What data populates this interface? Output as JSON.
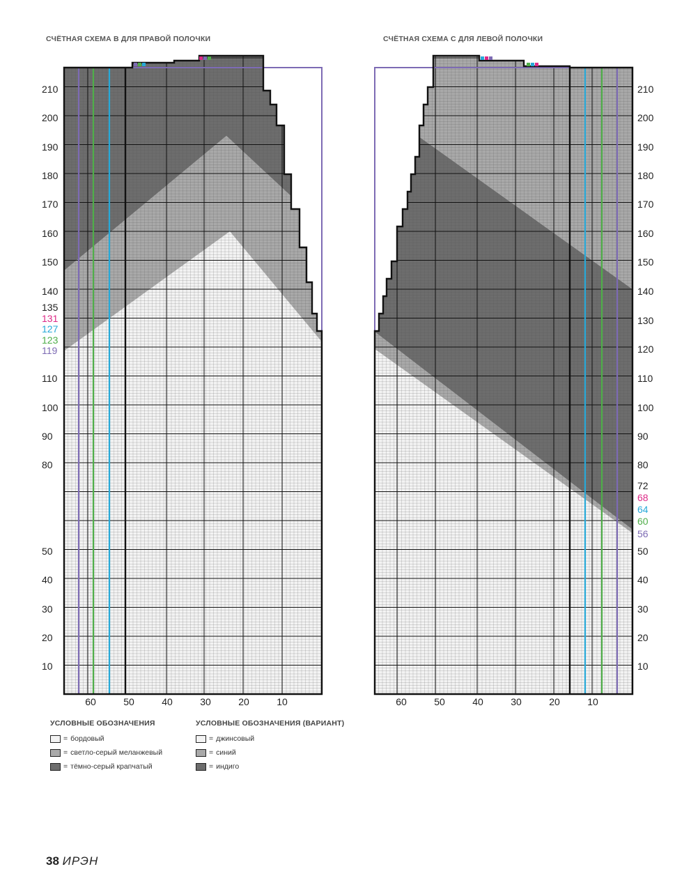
{
  "titles": {
    "right": "СЧЁТНАЯ СХЕМА В ДЛЯ ПРАВОЙ ПОЛОЧКИ",
    "left": "СЧЁТНАЯ СХЕМА С ДЛЯ ЛЕВОЙ ПОЛОЧКИ"
  },
  "colors": {
    "light": "#f3f3f3",
    "mid": "#a9a9a9",
    "dark": "#6d6d6d",
    "size_lines": [
      "#7d6bb4",
      "#4fae49",
      "#27a9d8",
      "#dd2a87"
    ]
  },
  "right_chart": {
    "row_labels": [
      "210",
      "200",
      "190",
      "180",
      "170",
      "160",
      "150",
      "140",
      "135",
      "110",
      "100",
      "90",
      "80",
      "50",
      "40",
      "30",
      "20",
      "10"
    ],
    "colored_row_labels": [
      {
        "text": "131",
        "color": "#dd2a87"
      },
      {
        "text": "127",
        "color": "#27a9d8"
      },
      {
        "text": "123",
        "color": "#4fae49"
      },
      {
        "text": "119",
        "color": "#7d6bb4"
      }
    ],
    "col_labels": [
      "60",
      "50",
      "40",
      "30",
      "20",
      "10"
    ]
  },
  "left_chart": {
    "row_labels": [
      "210",
      "200",
      "190",
      "180",
      "170",
      "160",
      "150",
      "140",
      "130",
      "120",
      "110",
      "100",
      "90",
      "80",
      "72",
      "50",
      "40",
      "30",
      "20",
      "10"
    ],
    "colored_row_labels": [
      {
        "text": "68",
        "color": "#dd2a87"
      },
      {
        "text": "64",
        "color": "#27a9d8"
      },
      {
        "text": "60",
        "color": "#4fae49"
      },
      {
        "text": "56",
        "color": "#7d6bb4"
      }
    ],
    "col_labels": [
      "60",
      "50",
      "40",
      "30",
      "20",
      "10"
    ]
  },
  "legend": {
    "main": {
      "title": "УСЛОВНЫЕ ОБОЗНАЧЕНИЯ",
      "items": [
        "бордовый",
        "светло-серый меланжевый",
        "тёмно-серый крапчатый"
      ]
    },
    "variant": {
      "title": "УСЛОВНЫЕ ОБОЗНАЧЕНИЯ (ВАРИАНТ)",
      "items": [
        "джинсовый",
        "синий",
        "индиго"
      ]
    },
    "equals": "="
  },
  "footer": {
    "page_number": "38",
    "magazine": "ИРЭН"
  }
}
